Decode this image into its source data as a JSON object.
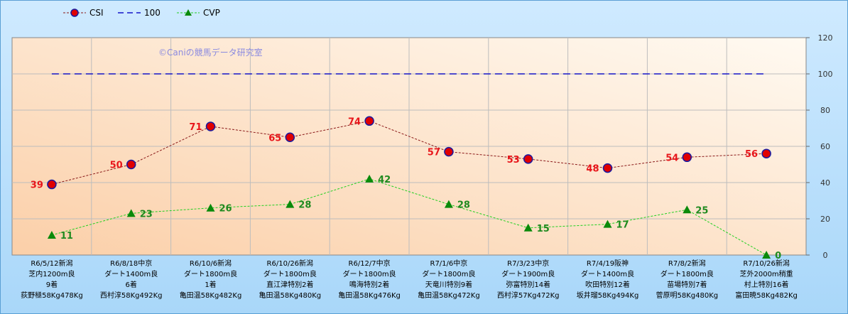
{
  "watermark": "©Caniの競馬データ研究室",
  "legend": [
    {
      "name": "CSI",
      "marker": "circle",
      "color": "#8b1a1a"
    },
    {
      "name": "100",
      "marker": "none",
      "color": "#1515c8"
    },
    {
      "name": "CVP",
      "marker": "triangle",
      "color": "#1a8a1a"
    }
  ],
  "colors": {
    "csi_line": "#8b1a1a",
    "csi_marker_fill": "#e00000",
    "csi_marker_edge": "#1a1aa0",
    "csi_label": "#e8161b",
    "ref_line": "#1515c8",
    "cvp_line": "#20d020",
    "cvp_marker": "#0a8a0a",
    "cvp_label": "#1f8a1f",
    "plot_gradient_start": "#fbcfa8",
    "plot_gradient_end": "#fffaf2"
  },
  "chart_data": {
    "type": "line",
    "categories": [
      [
        "R6/5/12新潟",
        "芝内1200m良",
        "9着",
        "荻野極58Kg478Kg"
      ],
      [
        "R6/8/18中京",
        "ダート1400m良",
        "6着",
        "西村淳58Kg492Kg"
      ],
      [
        "R6/10/6新潟",
        "ダート1800m良",
        "1着",
        "亀田温58Kg482Kg"
      ],
      [
        "R6/10/26新潟",
        "ダート1800m良",
        "直江津特別2着",
        "亀田温58Kg480Kg"
      ],
      [
        "R6/12/7中京",
        "ダート1800m良",
        "鳴海特別2着",
        "亀田温58Kg476Kg"
      ],
      [
        "R7/1/6中京",
        "ダート1800m良",
        "天竜川特別9着",
        "亀田温58Kg472Kg"
      ],
      [
        "R7/3/23中京",
        "ダート1900m良",
        "弥富特別14着",
        "西村淳57Kg472Kg"
      ],
      [
        "R7/4/19阪神",
        "ダート1400m良",
        "吹田特別12着",
        "坂井瑠58Kg494Kg"
      ],
      [
        "R7/8/2新潟",
        "ダート1800m良",
        "苗場特別7着",
        "菅原明58Kg480Kg"
      ],
      [
        "R7/10/26新潟",
        "芝外2000m稍重",
        "村上特別16着",
        "富田暁58Kg482Kg"
      ]
    ],
    "series": [
      {
        "name": "CSI",
        "values": [
          39,
          50,
          71,
          65,
          74,
          57,
          53,
          48,
          54,
          56
        ]
      },
      {
        "name": "100",
        "values": [
          100,
          100,
          100,
          100,
          100,
          100,
          100,
          100,
          100,
          100
        ]
      },
      {
        "name": "CVP",
        "values": [
          11,
          23,
          26,
          28,
          42,
          28,
          15,
          17,
          25,
          0
        ]
      }
    ],
    "y_axis": {
      "side": "right",
      "ylim": [
        0,
        120
      ],
      "ticks": [
        "0",
        "20",
        "40",
        "60",
        "80",
        "100",
        "120"
      ]
    },
    "grid": true,
    "legend_position": "top-left"
  }
}
